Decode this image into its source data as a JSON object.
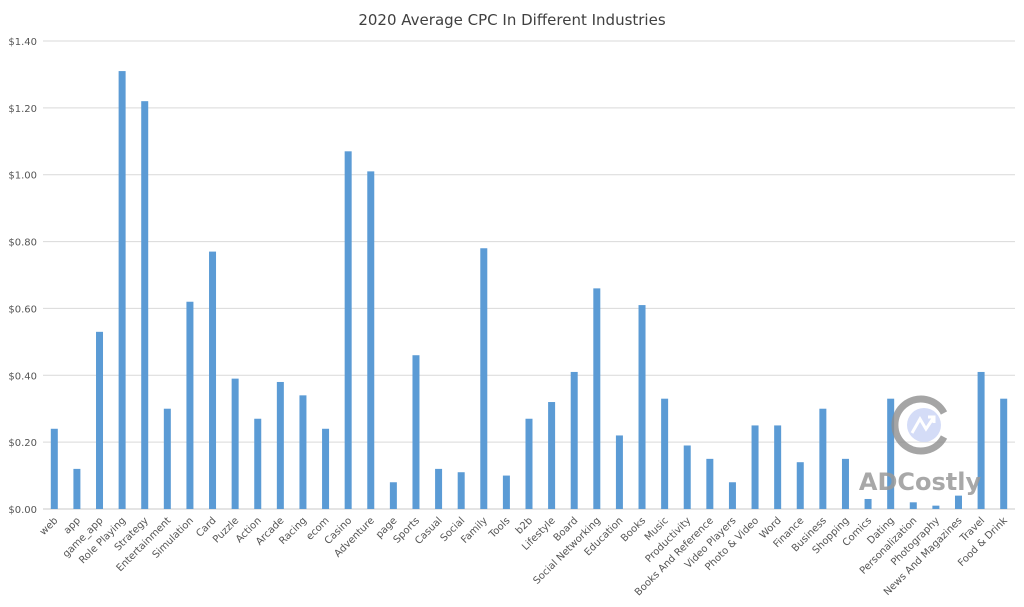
{
  "chart_data": {
    "type": "bar",
    "title": "2020 Average CPC In Different Industries",
    "xlabel": "",
    "ylabel": "",
    "ylim": [
      0,
      1.4
    ],
    "yticks": [
      "$0.00",
      "$0.20",
      "$0.40",
      "$0.60",
      "$0.80",
      "$1.00",
      "$1.20",
      "$1.40"
    ],
    "grid": true,
    "color": "#5b9bd5",
    "categories": [
      "web",
      "app",
      "game_app",
      "Role Playing",
      "Strategy",
      "Entertainment",
      "Simulation",
      "Card",
      "Puzzle",
      "Action",
      "Arcade",
      "Racing",
      "ecom",
      "Casino",
      "Adventure",
      "page",
      "Sports",
      "Casual",
      "Social",
      "Family",
      "Tools",
      "b2b",
      "Lifestyle",
      "Board",
      "Social Networking",
      "Education",
      "Books",
      "Music",
      "Productivity",
      "Books And Reference",
      "Video Players",
      "Photo & Video",
      "Word",
      "Finance",
      "Business",
      "Shopping",
      "Comics",
      "Dating",
      "Personalization",
      "Photography",
      "News And Magazines",
      "Travel",
      "Food & Drink"
    ],
    "values": [
      0.24,
      0.12,
      0.53,
      1.31,
      1.22,
      0.3,
      0.62,
      0.77,
      0.39,
      0.27,
      0.38,
      0.34,
      0.24,
      1.07,
      1.01,
      0.08,
      0.46,
      0.12,
      0.11,
      0.78,
      0.1,
      0.27,
      0.32,
      0.41,
      0.66,
      0.22,
      0.61,
      0.33,
      0.19,
      0.15,
      0.08,
      0.25,
      0.25,
      0.14,
      0.3,
      0.15,
      0.03,
      0.33,
      0.02,
      0.01,
      0.04,
      0.41,
      0.33
    ]
  },
  "watermark": {
    "text": "ADCostly",
    "icon": "adcostly-logo-icon"
  }
}
